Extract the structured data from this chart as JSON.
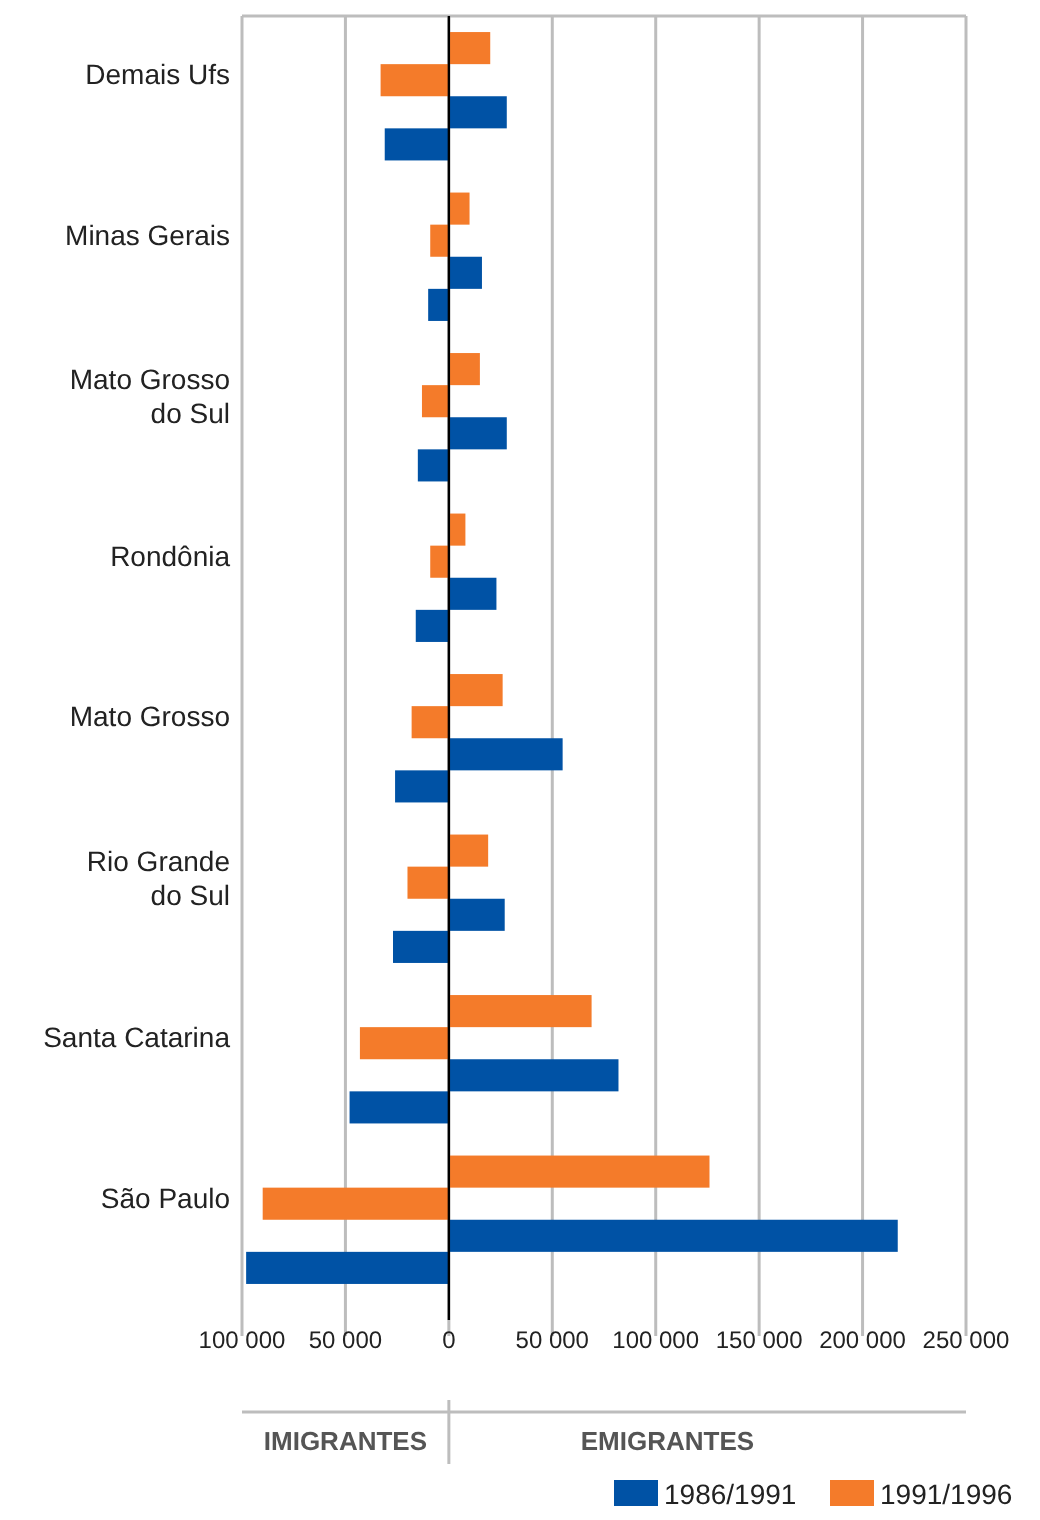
{
  "chart_data": {
    "type": "bar",
    "orientation": "horizontal",
    "categories": [
      "Demais Ufs",
      "Minas Gerais",
      "Mato Grosso\ndo Sul",
      "Rondônia",
      "Mato Grosso",
      "Rio Grande\ndo Sul",
      "Santa Catarina",
      "São Paulo"
    ],
    "series": [
      {
        "name": "1991/1996",
        "color": "#f47b2a",
        "values": [
          20000,
          10000,
          15000,
          8000,
          26000,
          19000,
          69000,
          126000
        ]
      },
      {
        "color": "#f47b2a",
        "values": [
          -33000,
          -9000,
          -13000,
          -9000,
          -18000,
          -20000,
          -43000,
          -90000
        ]
      },
      {
        "name": "1986/1991",
        "color": "#0052a5",
        "values": [
          28000,
          16000,
          28000,
          23000,
          55000,
          27000,
          82000,
          217000
        ]
      },
      {
        "color": "#0052a5",
        "values": [
          -31000,
          -10000,
          -15000,
          -16000,
          -26000,
          -27000,
          -48000,
          -98000
        ]
      }
    ],
    "xlim": [
      -100000,
      250000
    ],
    "xticks": [
      {
        "value": -100000,
        "label": "100 000"
      },
      {
        "value": -50000,
        "label": "50 000"
      },
      0,
      {
        "value": 50000,
        "label": "50 000"
      },
      {
        "value": 100000,
        "label": "100 000"
      },
      {
        "value": 150000,
        "label": "150 000"
      },
      {
        "value": 200000,
        "label": "200 000"
      },
      {
        "value": 250000,
        "label": "250 000"
      }
    ],
    "grid": "x",
    "legend": "bottom right",
    "annotations": [
      "IMIGRANTES",
      "EMIGRANTES"
    ]
  }
}
